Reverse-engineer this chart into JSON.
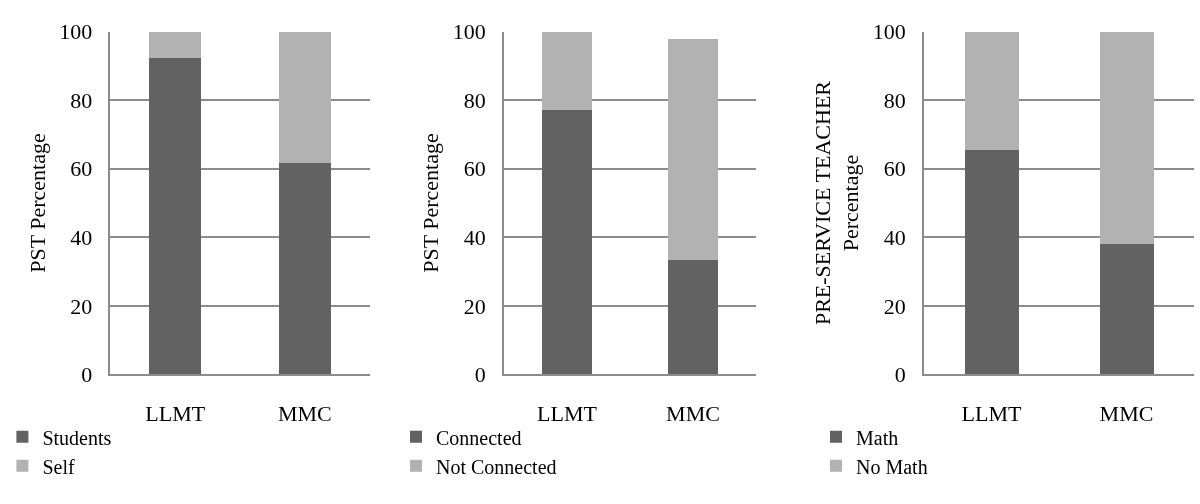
{
  "chart_data": [
    {
      "type": "bar",
      "stacked": true,
      "categories": [
        "LLMT",
        "MMC"
      ],
      "ylabel": "PST Percentage",
      "ylim": [
        0,
        100
      ],
      "yticks": [
        0,
        20,
        40,
        60,
        80,
        100
      ],
      "grid": "y",
      "legend": "bottom",
      "series": [
        {
          "name": "Students",
          "color": "#626262",
          "values": [
            92.3,
            61.8
          ]
        },
        {
          "name": "Self",
          "color": "#b2b2b2",
          "values": [
            7.7,
            38.2
          ]
        }
      ]
    },
    {
      "type": "bar",
      "stacked": true,
      "categories": [
        "LLMT",
        "MMC"
      ],
      "ylabel": "PST Percentage",
      "ylim": [
        0,
        100
      ],
      "yticks": [
        0,
        20,
        40,
        60,
        80,
        100
      ],
      "grid": "y",
      "legend": "bottom",
      "series": [
        {
          "name": "Connected",
          "color": "#626262",
          "values": [
            77,
            33.3
          ]
        },
        {
          "name": "Not Connected",
          "color": "#b2b2b2",
          "values": [
            23,
            64.7
          ]
        }
      ]
    },
    {
      "type": "bar",
      "stacked": true,
      "categories": [
        "LLMT",
        "MMC"
      ],
      "ylabel": "PRE-SERVICE TEACHER Percentage",
      "ylim": [
        0,
        100
      ],
      "yticks": [
        0,
        20,
        40,
        60,
        80,
        100
      ],
      "grid": "y",
      "legend": "bottom",
      "series": [
        {
          "name": "Math",
          "color": "#626262",
          "values": [
            65.4,
            38
          ]
        },
        {
          "name": "No Math",
          "color": "#b2b2b2",
          "values": [
            34.6,
            62
          ]
        }
      ]
    }
  ]
}
